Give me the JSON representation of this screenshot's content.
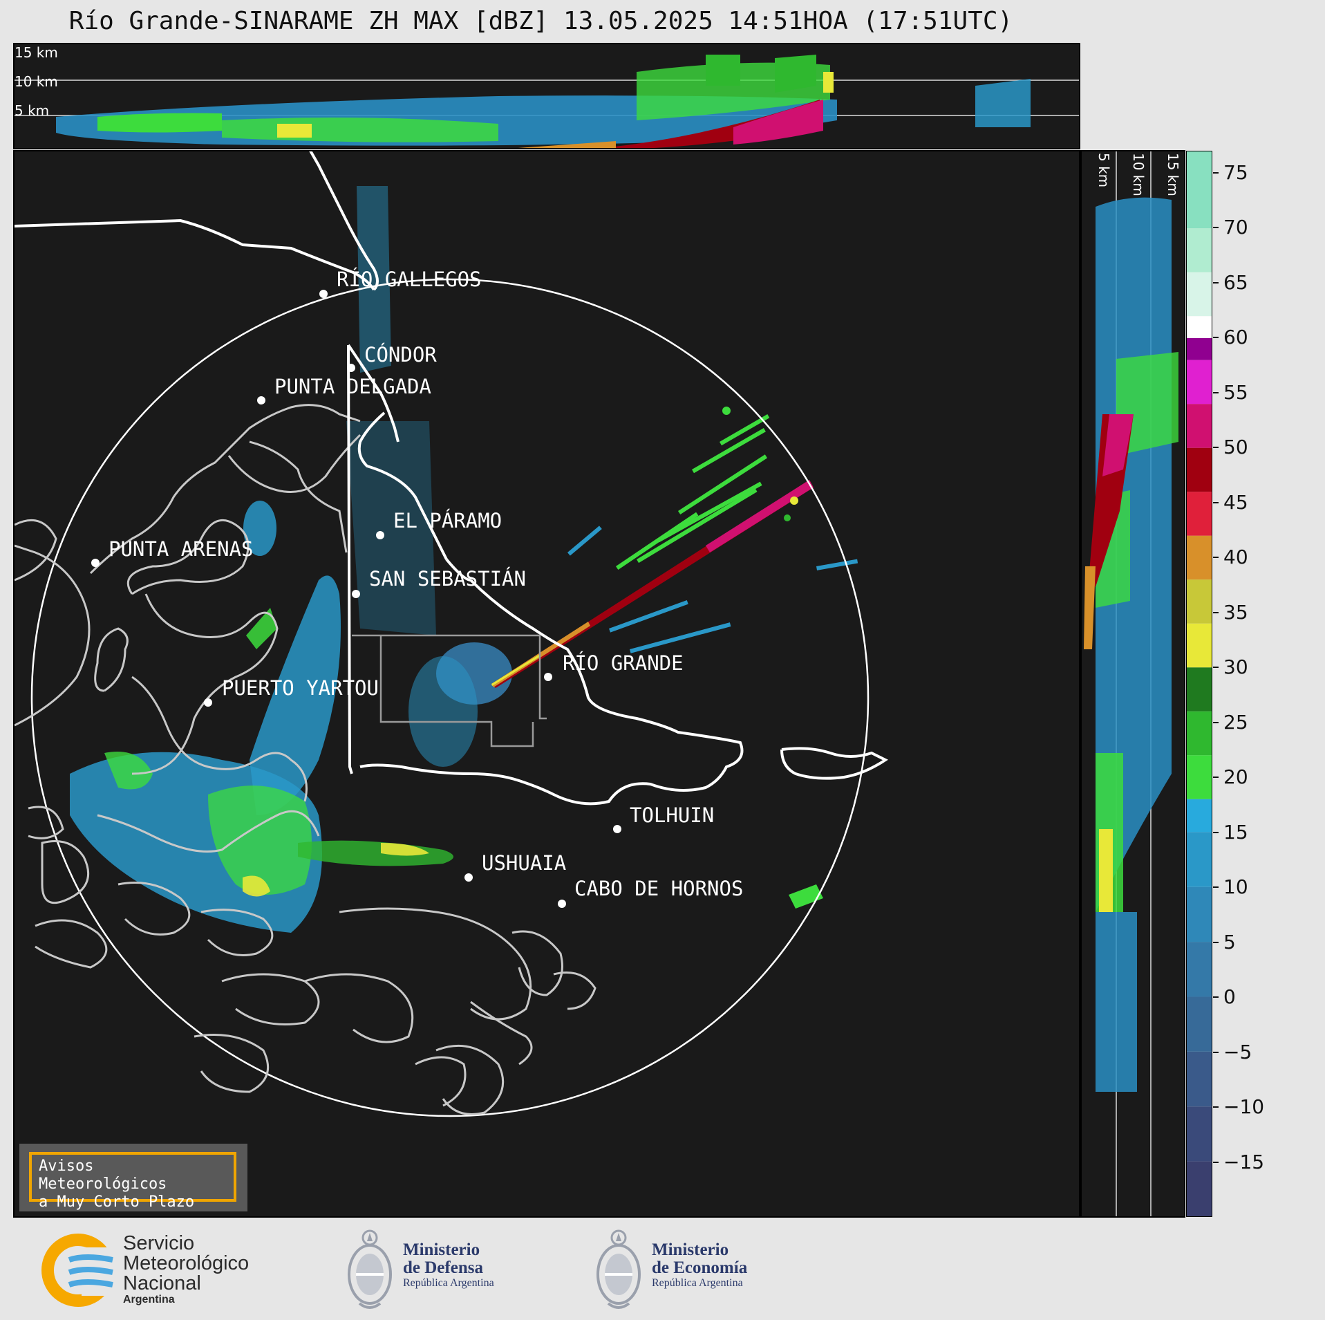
{
  "title": "Río Grande-SINARAME ZH MAX [dBZ] 13.05.2025 14:51HOA (17:51UTC)",
  "top_panel": {
    "height_labels": [
      "15 km",
      "10 km",
      "5 km"
    ]
  },
  "right_panel": {
    "height_labels": [
      "5 km",
      "10 km",
      "15 km"
    ]
  },
  "map": {
    "cities": [
      {
        "name": "RÍO GALLEGOS"
      },
      {
        "name": "CÓNDOR"
      },
      {
        "name": "PUNTA DELGADA"
      },
      {
        "name": "PUNTA ARENAS"
      },
      {
        "name": "EL PÁRAMO"
      },
      {
        "name": "SAN SEBASTIÁN"
      },
      {
        "name": "RÍO GRANDE"
      },
      {
        "name": "PUERTO YARTOU"
      },
      {
        "name": "TOLHUIN"
      },
      {
        "name": "USHUAIA"
      },
      {
        "name": "CABO DE HORNOS"
      }
    ]
  },
  "colorbar": {
    "ticks": [
      "75",
      "70",
      "65",
      "60",
      "55",
      "50",
      "45",
      "40",
      "35",
      "30",
      "25",
      "20",
      "15",
      "10",
      "5",
      "0",
      "−5",
      "−10",
      "−15"
    ],
    "range": [
      -20,
      77
    ],
    "stops": [
      {
        "from": -20,
        "to": -15,
        "color": "#3a3f6e"
      },
      {
        "from": -15,
        "to": -10,
        "color": "#3a4a7a"
      },
      {
        "from": -10,
        "to": -5,
        "color": "#3a5a8a"
      },
      {
        "from": -5,
        "to": 0,
        "color": "#376a98"
      },
      {
        "from": 0,
        "to": 5,
        "color": "#3479a8"
      },
      {
        "from": 5,
        "to": 10,
        "color": "#2f88b8"
      },
      {
        "from": 10,
        "to": 15,
        "color": "#2a98c8"
      },
      {
        "from": 15,
        "to": 18,
        "color": "#28aadd"
      },
      {
        "from": 18,
        "to": 22,
        "color": "#3ddc3d"
      },
      {
        "from": 22,
        "to": 26,
        "color": "#2fb82f"
      },
      {
        "from": 26,
        "to": 30,
        "color": "#1f7a1f"
      },
      {
        "from": 30,
        "to": 34,
        "color": "#e8e838"
      },
      {
        "from": 34,
        "to": 38,
        "color": "#c8c838"
      },
      {
        "from": 38,
        "to": 42,
        "color": "#d8902a"
      },
      {
        "from": 42,
        "to": 46,
        "color": "#e0203a"
      },
      {
        "from": 46,
        "to": 50,
        "color": "#a00010"
      },
      {
        "from": 50,
        "to": 54,
        "color": "#d01070"
      },
      {
        "from": 54,
        "to": 58,
        "color": "#e020d0"
      },
      {
        "from": 58,
        "to": 60,
        "color": "#900090"
      },
      {
        "from": 60,
        "to": 62,
        "color": "#ffffff"
      },
      {
        "from": 62,
        "to": 66,
        "color": "#d8f4e8"
      },
      {
        "from": 66,
        "to": 70,
        "color": "#b0ecd0"
      },
      {
        "from": 70,
        "to": 77,
        "color": "#88e0c0"
      }
    ]
  },
  "notice": {
    "line1": "Avisos Meteorológicos",
    "line2": "a Muy Corto Plazo"
  },
  "logos": {
    "smn": {
      "line1": "Servicio",
      "line2": "Meteorológico",
      "line3": "Nacional",
      "line4": "Argentina"
    },
    "defensa": {
      "line1": "Ministerio",
      "line2": "de Defensa",
      "line3": "República Argentina"
    },
    "economia": {
      "line1": "Ministerio",
      "line2": "de Economía",
      "line3": "República Argentina"
    }
  }
}
